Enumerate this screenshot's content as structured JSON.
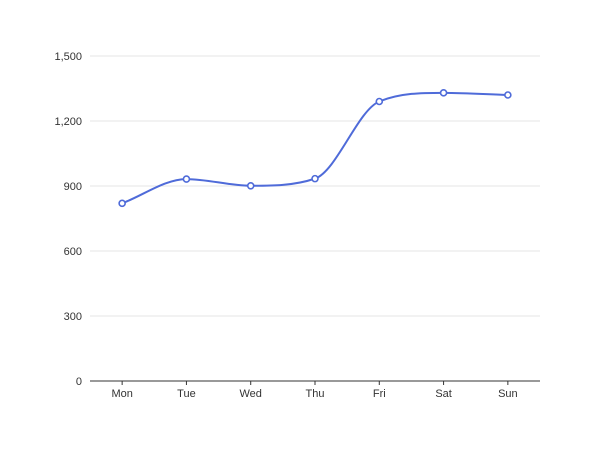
{
  "chart_data": {
    "type": "line",
    "title": "",
    "xlabel": "",
    "ylabel": "",
    "categories": [
      "Mon",
      "Tue",
      "Wed",
      "Thu",
      "Fri",
      "Sat",
      "Sun"
    ],
    "series": [
      {
        "values": [
          820,
          932,
          901,
          934,
          1290,
          1330,
          1320
        ],
        "color": "#4f6bd9",
        "smooth": true,
        "marker": "hollow-circle"
      }
    ],
    "ylim": [
      0,
      1500
    ],
    "yticks": [
      0,
      300,
      600,
      900,
      1200,
      1500
    ],
    "ytick_labels": [
      "0",
      "300",
      "600",
      "900",
      "1,200",
      "1,500"
    ],
    "grid": {
      "horizontal": true,
      "vertical": false,
      "color": "#e6e6e6"
    },
    "axis_color": "#333333",
    "legend": "none"
  }
}
